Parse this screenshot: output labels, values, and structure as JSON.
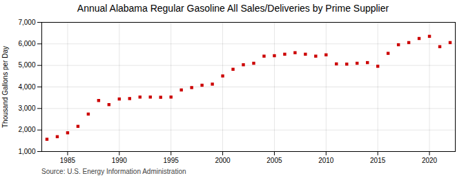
{
  "chart_data": {
    "type": "scatter",
    "title": "Annual Alabama Regular Gasoline All Sales/Deliveries by Prime Supplier",
    "ylabel": "Thousand Gallons per Day",
    "source": "Source: U.S. Energy Information Administration",
    "x": [
      1983,
      1984,
      1985,
      1986,
      1987,
      1988,
      1989,
      1990,
      1991,
      1992,
      1993,
      1994,
      1995,
      1996,
      1997,
      1998,
      1999,
      2000,
      2001,
      2002,
      2003,
      2004,
      2005,
      2006,
      2007,
      2008,
      2009,
      2010,
      2011,
      2012,
      2013,
      2014,
      2015,
      2016,
      2017,
      2018,
      2019,
      2020,
      2021,
      2022
    ],
    "values": [
      1570,
      1690,
      1870,
      2170,
      2740,
      3370,
      3180,
      3440,
      3460,
      3530,
      3530,
      3520,
      3530,
      3860,
      3970,
      4080,
      4130,
      4510,
      4820,
      5030,
      5100,
      5430,
      5450,
      5520,
      5590,
      5520,
      5430,
      5490,
      5070,
      5060,
      5100,
      5130,
      4960,
      5560,
      5960,
      6060,
      6250,
      6350,
      5870,
      6060
    ],
    "color": "#CC0000",
    "marker": "square",
    "xlim": [
      1982.5,
      2022.5
    ],
    "xticks": [
      1985,
      1990,
      1995,
      2000,
      2005,
      2010,
      2015,
      2020
    ],
    "ylim": [
      1000,
      7000
    ],
    "yticks": [
      {
        "value": 1000,
        "label": "1,000"
      },
      {
        "value": 2000,
        "label": "2,000"
      },
      {
        "value": 3000,
        "label": "3,000"
      },
      {
        "value": 4000,
        "label": "4,000"
      },
      {
        "value": 5000,
        "label": "5,000"
      },
      {
        "value": 6000,
        "label": "6,000"
      },
      {
        "value": 7000,
        "label": "7,000"
      }
    ],
    "grid": true
  }
}
